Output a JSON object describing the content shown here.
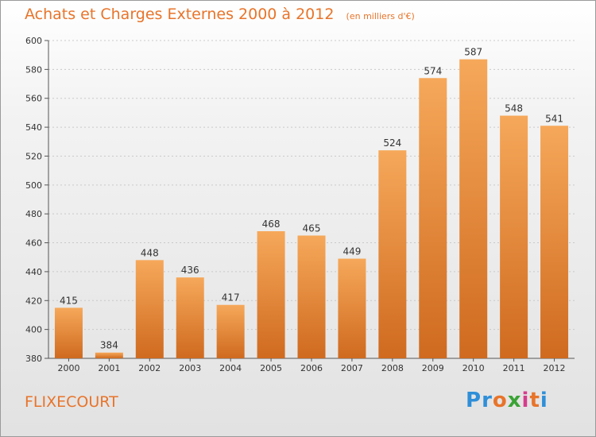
{
  "title": "Achats et Charges Externes 2000 à 2012",
  "unit_note": "(en milliers d'€)",
  "commune": "FLIXECOURT",
  "logo": {
    "text": "Proxiti",
    "letters": [
      "P",
      "r",
      "o",
      "x",
      "i",
      "t",
      "i"
    ],
    "colors": [
      "#2f8fd8",
      "#2f8fd8",
      "#e8742a",
      "#3aa335",
      "#d63d8c",
      "#e8742a",
      "#2f8fd8"
    ]
  },
  "colors": {
    "accent": "#e8742a",
    "bar_top": "#f6a85a",
    "bar_bottom": "#cf6a1f"
  },
  "chart_data": {
    "type": "bar",
    "categories": [
      "2000",
      "2001",
      "2002",
      "2003",
      "2004",
      "2005",
      "2006",
      "2007",
      "2008",
      "2009",
      "2010",
      "2011",
      "2012"
    ],
    "values": [
      415,
      384,
      448,
      436,
      417,
      468,
      465,
      449,
      524,
      574,
      587,
      548,
      541
    ],
    "ylim": [
      380,
      600
    ],
    "yticks": [
      380,
      400,
      420,
      440,
      460,
      480,
      500,
      520,
      540,
      560,
      580,
      600
    ],
    "grid": true,
    "data_labels": true
  }
}
